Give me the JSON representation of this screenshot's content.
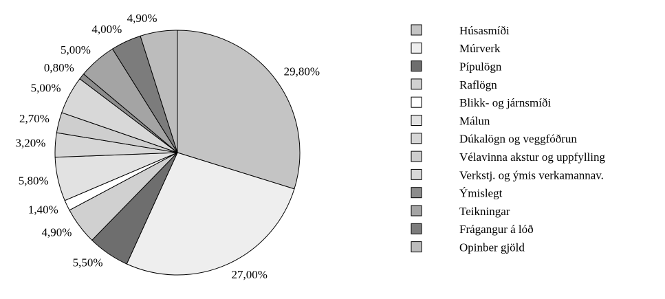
{
  "chart_data": {
    "type": "pie",
    "categories": [
      "Húsasmíði",
      "Múrverk",
      "Pípulögn",
      "Raflögn",
      "Blikk- og járnsmíði",
      "Málun",
      "Dúkalögn og veggfóðrun",
      "Vélavinna akstur og  uppfylling",
      "Verkstj. og ýmis verkamannav.",
      "Ýmislegt",
      "Teikningar",
      "Frágangur á lóð",
      "Opinber gjöld"
    ],
    "values": [
      29.8,
      27.0,
      5.5,
      4.9,
      1.4,
      5.8,
      3.2,
      2.7,
      5.0,
      0.8,
      5.0,
      4.0,
      4.9
    ],
    "value_labels": [
      "29,80%",
      "27,00%",
      "5,50%",
      "4,90%",
      "1,40%",
      "5,80%",
      "3,20%",
      "2,70%",
      "5,00%",
      "0,80%",
      "5,00%",
      "4,00%",
      "4,90%"
    ],
    "colors": [
      "#c4c4c4",
      "#eeeeee",
      "#6e6e6e",
      "#d0d0d0",
      "#ffffff",
      "#e2e2e2",
      "#d6d6d6",
      "#cecece",
      "#d8d8d8",
      "#8c8c8c",
      "#a4a4a4",
      "#7c7c7c",
      "#bcbcbc"
    ]
  }
}
